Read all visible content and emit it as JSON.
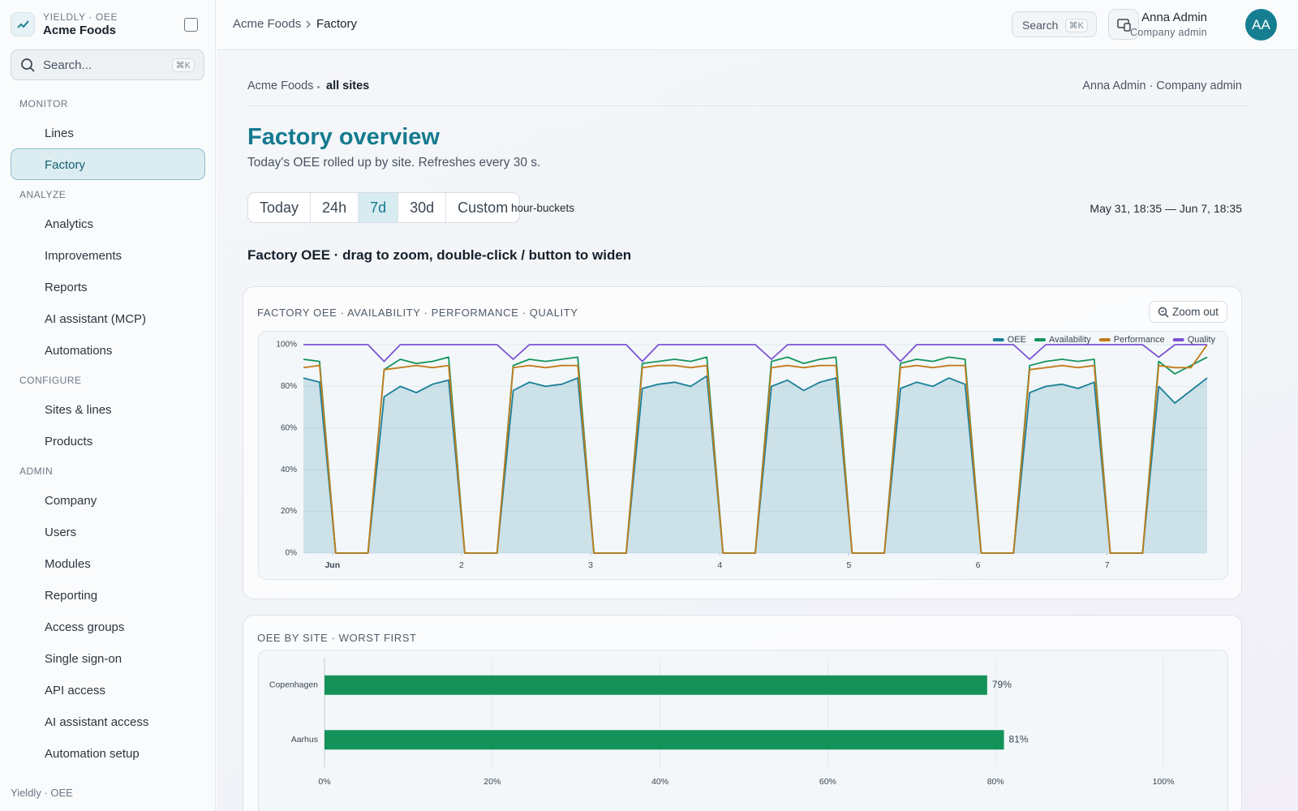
{
  "sidebar": {
    "brand_small": "YIELDLY · OEE",
    "brand": "Acme Foods",
    "search": "Search...",
    "search_kbd": "⌘K",
    "active": "Factory",
    "sections": [
      {
        "title": "MONITOR",
        "items": [
          "Lines",
          "Factory"
        ]
      },
      {
        "title": "ANALYZE",
        "items": [
          "Analytics",
          "Improvements",
          "Reports",
          "AI assistant (MCP)",
          "Automations"
        ]
      },
      {
        "title": "CONFIGURE",
        "items": [
          "Sites & lines",
          "Products"
        ]
      },
      {
        "title": "ADMIN",
        "items": [
          "Company",
          "Users",
          "Modules",
          "Reporting",
          "Access groups",
          "Single sign-on",
          "API access",
          "AI assistant access",
          "Automation setup"
        ]
      }
    ],
    "footer": "Yieldly · OEE"
  },
  "topbar": {
    "breadcrumb": [
      "Acme Foods",
      "Factory"
    ],
    "search": "Search",
    "search_kbd": "⌘K",
    "user_name": "Anna Admin",
    "user_role": "Company admin",
    "avatar": "AA"
  },
  "page": {
    "scope": "Acme Foods",
    "scope_detail": "all sites",
    "user_line": "Anna Admin · Company admin",
    "title": "Factory overview",
    "subtitle": "Today's OEE rolled up by site. Refreshes every 30 s.",
    "ranges": [
      "Today",
      "24h",
      "7d",
      "30d",
      "Custom"
    ],
    "active_range": "7d",
    "bucket": "hour-buckets",
    "date_range": "May 31, 18:35 — Jun 7, 18:35",
    "section_title": "Factory OEE · drag to zoom, double-click / button to widen",
    "zoom_out": "Zoom out"
  },
  "chart_data": [
    {
      "type": "line",
      "title": "FACTORY OEE · AVAILABILITY · PERFORMANCE · QUALITY",
      "x": [
        0.775,
        0.9,
        1.025,
        1.15,
        1.275,
        1.4,
        1.525,
        1.65,
        1.775,
        1.9,
        2.025,
        2.15,
        2.275,
        2.4,
        2.525,
        2.65,
        2.775,
        2.9,
        3.025,
        3.15,
        3.275,
        3.4,
        3.525,
        3.65,
        3.775,
        3.9,
        4.025,
        4.15,
        4.275,
        4.4,
        4.525,
        4.65,
        4.775,
        4.9,
        5.025,
        5.15,
        5.275,
        5.4,
        5.525,
        5.65,
        5.775,
        5.9,
        6.025,
        6.15,
        6.275,
        6.4,
        6.525,
        6.65,
        6.775,
        6.9,
        7.025,
        7.15,
        7.275,
        7.4,
        7.525,
        7.65,
        7.775
      ],
      "xlim": [
        0.775,
        7.775
      ],
      "xticks": [
        {
          "value": 1,
          "label": "Jun"
        },
        2,
        3,
        4,
        5,
        6,
        7
      ],
      "ylim": [
        0,
        100
      ],
      "yticks": [
        {
          "value": 0,
          "label": "0%"
        },
        {
          "value": 20,
          "label": "20%"
        },
        {
          "value": 40,
          "label": "40%"
        },
        {
          "value": 60,
          "label": "60%"
        },
        {
          "value": 80,
          "label": "80%"
        },
        {
          "value": 100,
          "label": "100%"
        }
      ],
      "grid": true,
      "legend": "top-right",
      "series": [
        {
          "name": "OEE",
          "color": "#1b7f99",
          "fill": true,
          "values": [
            84,
            82,
            0,
            0,
            0,
            75,
            80,
            77,
            81,
            83,
            0,
            0,
            0,
            78,
            82,
            80,
            81,
            84,
            0,
            0,
            0,
            79,
            81,
            82,
            80,
            85,
            0,
            0,
            0,
            80,
            83,
            78,
            82,
            84,
            0,
            0,
            0,
            79,
            82,
            80,
            84,
            81,
            0,
            0,
            0,
            77,
            80,
            81,
            79,
            82,
            0,
            0,
            0,
            80,
            72,
            78,
            84
          ]
        },
        {
          "name": "Availability",
          "color": "#14935c",
          "values": [
            93,
            92,
            0,
            0,
            0,
            88,
            93,
            91,
            92,
            94,
            0,
            0,
            0,
            90,
            93,
            92,
            93,
            94,
            0,
            0,
            0,
            91,
            92,
            93,
            92,
            94,
            0,
            0,
            0,
            92,
            94,
            91,
            93,
            94,
            0,
            0,
            0,
            91,
            93,
            92,
            94,
            93,
            0,
            0,
            0,
            90,
            92,
            93,
            92,
            93,
            0,
            0,
            0,
            92,
            86,
            90,
            94
          ]
        },
        {
          "name": "Performance",
          "color": "#c27c1c",
          "values": [
            89,
            90,
            0,
            0,
            0,
            88,
            89,
            90,
            89,
            90,
            0,
            0,
            0,
            89,
            90,
            89,
            90,
            90,
            0,
            0,
            0,
            89,
            90,
            90,
            89,
            90,
            0,
            0,
            0,
            89,
            90,
            89,
            90,
            90,
            0,
            0,
            0,
            89,
            90,
            89,
            90,
            90,
            0,
            0,
            0,
            88,
            89,
            90,
            89,
            90,
            0,
            0,
            0,
            90,
            89,
            89,
            100
          ]
        },
        {
          "name": "Quality",
          "color": "#7b52d4",
          "values": [
            100,
            100,
            100,
            100,
            100,
            92,
            100,
            100,
            100,
            100,
            100,
            100,
            100,
            93,
            100,
            100,
            100,
            100,
            100,
            100,
            100,
            92,
            100,
            100,
            100,
            100,
            100,
            100,
            100,
            93,
            100,
            100,
            100,
            100,
            100,
            100,
            100,
            92,
            100,
            100,
            100,
            100,
            100,
            100,
            100,
            93,
            100,
            100,
            100,
            100,
            100,
            100,
            100,
            94,
            100,
            100,
            100
          ]
        }
      ]
    },
    {
      "type": "hbar",
      "title": "OEE BY SITE · WORST FIRST",
      "categories": [
        "Copenhagen",
        "Aarhus"
      ],
      "values": [
        79,
        81
      ],
      "value_labels": [
        "79%",
        "81%"
      ],
      "color": "#15925a",
      "xlim": [
        0,
        100
      ],
      "xticks": [
        {
          "value": 0,
          "label": "0%"
        },
        {
          "value": 20,
          "label": "20%"
        },
        {
          "value": 40,
          "label": "40%"
        },
        {
          "value": 60,
          "label": "60%"
        },
        {
          "value": 80,
          "label": "80%"
        },
        {
          "value": 100,
          "label": "100%"
        }
      ],
      "grid": true
    }
  ]
}
